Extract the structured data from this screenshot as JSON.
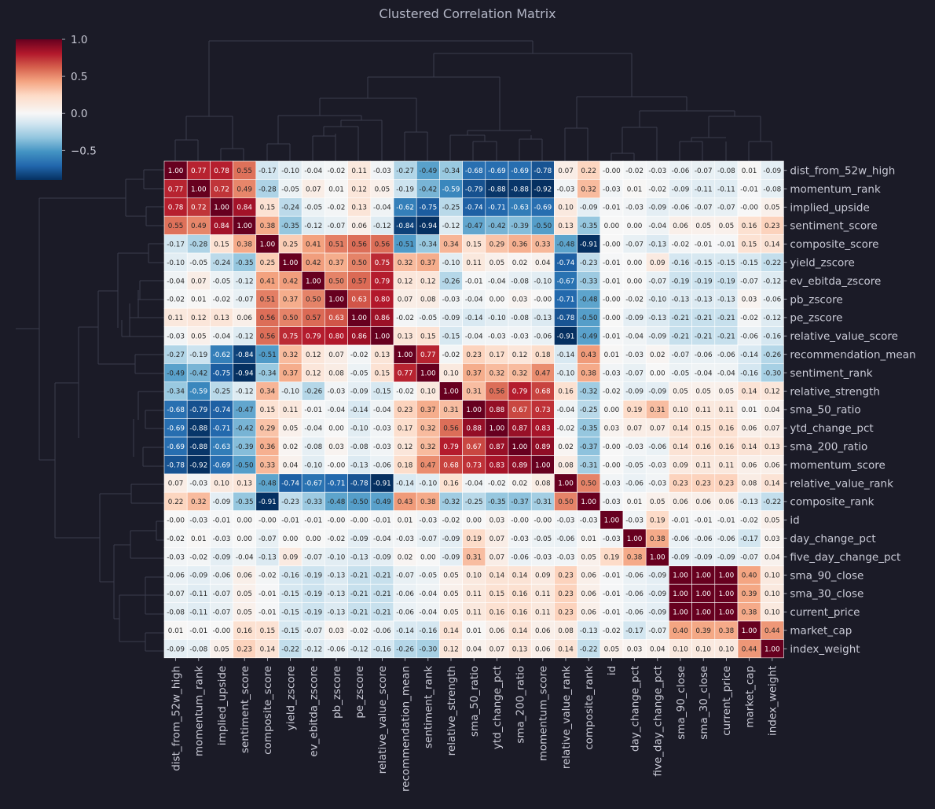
{
  "chart_data": {
    "type": "heatmap",
    "title": "Clustered Correlation Matrix",
    "labels": [
      "dist_from_52w_high",
      "momentum_rank",
      "implied_upside",
      "sentiment_score",
      "composite_score",
      "yield_zscore",
      "ev_ebitda_zscore",
      "pb_zscore",
      "pe_zscore",
      "relative_value_score",
      "recommendation_mean",
      "sentiment_rank",
      "relative_strength",
      "sma_50_ratio",
      "ytd_change_pct",
      "sma_200_ratio",
      "momentum_score",
      "relative_value_rank",
      "composite_rank",
      "id",
      "day_change_pct",
      "five_day_change_pct",
      "sma_90_close",
      "sma_30_close",
      "current_price",
      "market_cap",
      "index_weight"
    ],
    "value_labels": [
      [
        "1.00",
        "0.77",
        "0.78",
        "0.55",
        "-0.17",
        "-0.10",
        "-0.04",
        "-0.02",
        "0.11",
        "-0.03",
        "-0.27",
        "-0.49",
        "-0.34",
        "-0.68",
        "-0.69",
        "-0.69",
        "-0.78",
        "0.07",
        "0.22",
        "-0.00",
        "-0.02",
        "-0.03",
        "-0.06",
        "-0.07",
        "-0.08",
        "0.01",
        "-0.09"
      ],
      [
        "0.77",
        "1.00",
        "0.72",
        "0.49",
        "-0.28",
        "-0.05",
        "0.07",
        "0.01",
        "0.12",
        "0.05",
        "-0.19",
        "-0.42",
        "-0.59",
        "-0.79",
        "-0.88",
        "-0.88",
        "-0.92",
        "-0.03",
        "0.32",
        "-0.03",
        "0.01",
        "-0.02",
        "-0.09",
        "-0.11",
        "-0.11",
        "-0.01",
        "-0.08"
      ],
      [
        "0.78",
        "0.72",
        "1.00",
        "0.84",
        "0.15",
        "-0.24",
        "-0.05",
        "-0.02",
        "0.13",
        "-0.04",
        "-0.62",
        "-0.75",
        "-0.25",
        "-0.74",
        "-0.71",
        "-0.63",
        "-0.69",
        "0.10",
        "-0.09",
        "-0.01",
        "-0.03",
        "-0.09",
        "-0.06",
        "-0.07",
        "-0.07",
        "-0.00",
        "0.05"
      ],
      [
        "0.55",
        "0.49",
        "0.84",
        "1.00",
        "0.38",
        "-0.35",
        "-0.12",
        "-0.07",
        "0.06",
        "-0.12",
        "-0.84",
        "-0.94",
        "-0.12",
        "-0.47",
        "-0.42",
        "-0.39",
        "-0.50",
        "0.13",
        "-0.35",
        "0.00",
        "0.00",
        "-0.04",
        "0.06",
        "0.05",
        "0.05",
        "0.16",
        "0.23"
      ],
      [
        "-0.17",
        "-0.28",
        "0.15",
        "0.38",
        "1.00",
        "0.25",
        "0.41",
        "0.51",
        "0.56",
        "0.56",
        "-0.51",
        "-0.34",
        "0.34",
        "0.15",
        "0.29",
        "0.36",
        "0.33",
        "-0.48",
        "-0.91",
        "-0.00",
        "-0.07",
        "-0.13",
        "-0.02",
        "-0.01",
        "-0.01",
        "0.15",
        "0.14"
      ],
      [
        "-0.10",
        "-0.05",
        "-0.24",
        "-0.35",
        "0.25",
        "1.00",
        "0.42",
        "0.37",
        "0.50",
        "0.75",
        "0.32",
        "0.37",
        "-0.10",
        "0.11",
        "0.05",
        "0.02",
        "0.04",
        "-0.74",
        "-0.23",
        "-0.01",
        "0.00",
        "0.09",
        "-0.16",
        "-0.15",
        "-0.15",
        "-0.15",
        "-0.22"
      ],
      [
        "-0.04",
        "0.07",
        "-0.05",
        "-0.12",
        "0.41",
        "0.42",
        "1.00",
        "0.50",
        "0.57",
        "0.79",
        "0.12",
        "0.12",
        "-0.26",
        "-0.01",
        "-0.04",
        "-0.08",
        "-0.10",
        "-0.67",
        "-0.33",
        "-0.01",
        "0.00",
        "-0.07",
        "-0.19",
        "-0.19",
        "-0.19",
        "-0.07",
        "-0.12"
      ],
      [
        "-0.02",
        "0.01",
        "-0.02",
        "-0.07",
        "0.51",
        "0.37",
        "0.50",
        "1.00",
        "0.63",
        "0.80",
        "0.07",
        "0.08",
        "-0.03",
        "-0.04",
        "0.00",
        "0.03",
        "-0.00",
        "-0.71",
        "-0.48",
        "-0.00",
        "-0.02",
        "-0.10",
        "-0.13",
        "-0.13",
        "-0.13",
        "0.03",
        "-0.06"
      ],
      [
        "0.11",
        "0.12",
        "0.13",
        "0.06",
        "0.56",
        "0.50",
        "0.57",
        "0.63",
        "1.00",
        "0.86",
        "-0.02",
        "-0.05",
        "-0.09",
        "-0.14",
        "-0.10",
        "-0.08",
        "-0.13",
        "-0.78",
        "-0.50",
        "-0.00",
        "-0.09",
        "-0.13",
        "-0.21",
        "-0.21",
        "-0.21",
        "-0.02",
        "-0.12"
      ],
      [
        "-0.03",
        "0.05",
        "-0.04",
        "-0.12",
        "0.56",
        "0.75",
        "0.79",
        "0.80",
        "0.86",
        "1.00",
        "0.13",
        "0.15",
        "-0.15",
        "-0.04",
        "-0.03",
        "-0.03",
        "-0.06",
        "-0.91",
        "-0.49",
        "-0.01",
        "-0.04",
        "-0.09",
        "-0.21",
        "-0.21",
        "-0.21",
        "-0.06",
        "-0.16"
      ],
      [
        "-0.27",
        "-0.19",
        "-0.62",
        "-0.84",
        "-0.51",
        "0.32",
        "0.12",
        "0.07",
        "-0.02",
        "0.13",
        "1.00",
        "0.77",
        "-0.02",
        "0.23",
        "0.17",
        "0.12",
        "0.18",
        "-0.14",
        "0.43",
        "0.01",
        "-0.03",
        "0.02",
        "-0.07",
        "-0.06",
        "-0.06",
        "-0.14",
        "-0.26"
      ],
      [
        "-0.49",
        "-0.42",
        "-0.75",
        "-0.94",
        "-0.34",
        "0.37",
        "0.12",
        "0.08",
        "-0.05",
        "0.15",
        "0.77",
        "1.00",
        "0.10",
        "0.37",
        "0.32",
        "0.32",
        "0.47",
        "-0.10",
        "0.38",
        "-0.03",
        "-0.07",
        "0.00",
        "-0.05",
        "-0.04",
        "-0.04",
        "-0.16",
        "-0.30"
      ],
      [
        "-0.34",
        "-0.59",
        "-0.25",
        "-0.12",
        "0.34",
        "-0.10",
        "-0.26",
        "-0.03",
        "-0.09",
        "-0.15",
        "-0.02",
        "0.10",
        "1.00",
        "0.31",
        "0.56",
        "0.79",
        "0.68",
        "0.16",
        "-0.32",
        "-0.02",
        "-0.09",
        "-0.09",
        "0.05",
        "0.05",
        "0.05",
        "0.14",
        "0.12"
      ],
      [
        "-0.68",
        "-0.79",
        "-0.74",
        "-0.47",
        "0.15",
        "0.11",
        "-0.01",
        "-0.04",
        "-0.14",
        "-0.04",
        "0.23",
        "0.37",
        "0.31",
        "1.00",
        "0.88",
        "0.67",
        "0.73",
        "-0.04",
        "-0.25",
        "0.00",
        "0.19",
        "0.31",
        "0.10",
        "0.11",
        "0.11",
        "0.01",
        "0.04"
      ],
      [
        "-0.69",
        "-0.88",
        "-0.71",
        "-0.42",
        "0.29",
        "0.05",
        "-0.04",
        "0.00",
        "-0.10",
        "-0.03",
        "0.17",
        "0.32",
        "0.56",
        "0.88",
        "1.00",
        "0.87",
        "0.83",
        "-0.02",
        "-0.35",
        "0.03",
        "0.07",
        "0.07",
        "0.14",
        "0.15",
        "0.16",
        "0.06",
        "0.07"
      ],
      [
        "-0.69",
        "-0.88",
        "-0.63",
        "-0.39",
        "0.36",
        "0.02",
        "-0.08",
        "0.03",
        "-0.08",
        "-0.03",
        "0.12",
        "0.32",
        "0.79",
        "0.67",
        "0.87",
        "1.00",
        "0.89",
        "0.02",
        "-0.37",
        "-0.00",
        "-0.03",
        "-0.06",
        "0.14",
        "0.16",
        "0.16",
        "0.14",
        "0.13"
      ],
      [
        "-0.78",
        "-0.92",
        "-0.69",
        "-0.50",
        "0.33",
        "0.04",
        "-0.10",
        "-0.00",
        "-0.13",
        "-0.06",
        "0.18",
        "0.47",
        "0.68",
        "0.73",
        "0.83",
        "0.89",
        "1.00",
        "0.08",
        "-0.31",
        "-0.00",
        "-0.05",
        "-0.03",
        "0.09",
        "0.11",
        "0.11",
        "0.06",
        "0.06"
      ],
      [
        "0.07",
        "-0.03",
        "0.10",
        "0.13",
        "-0.48",
        "-0.74",
        "-0.67",
        "-0.71",
        "-0.78",
        "-0.91",
        "-0.14",
        "-0.10",
        "0.16",
        "-0.04",
        "-0.02",
        "0.02",
        "0.08",
        "1.00",
        "0.50",
        "-0.03",
        "-0.06",
        "-0.03",
        "0.23",
        "0.23",
        "0.23",
        "0.08",
        "0.14"
      ],
      [
        "0.22",
        "0.32",
        "-0.09",
        "-0.35",
        "-0.91",
        "-0.23",
        "-0.33",
        "-0.48",
        "-0.50",
        "-0.49",
        "0.43",
        "0.38",
        "-0.32",
        "-0.25",
        "-0.35",
        "-0.37",
        "-0.31",
        "0.50",
        "1.00",
        "-0.03",
        "0.01",
        "0.05",
        "0.06",
        "0.06",
        "0.06",
        "-0.13",
        "-0.22"
      ],
      [
        "-0.00",
        "-0.03",
        "-0.01",
        "0.00",
        "-0.00",
        "-0.01",
        "-0.01",
        "-0.00",
        "-0.00",
        "-0.01",
        "0.01",
        "-0.03",
        "-0.02",
        "0.00",
        "0.03",
        "-0.00",
        "-0.00",
        "-0.03",
        "-0.03",
        "1.00",
        "-0.03",
        "0.19",
        "-0.01",
        "-0.01",
        "-0.01",
        "-0.02",
        "0.05"
      ],
      [
        "-0.02",
        "0.01",
        "-0.03",
        "0.00",
        "-0.07",
        "0.00",
        "0.00",
        "-0.02",
        "-0.09",
        "-0.04",
        "-0.03",
        "-0.07",
        "-0.09",
        "0.19",
        "0.07",
        "-0.03",
        "-0.05",
        "-0.06",
        "0.01",
        "-0.03",
        "1.00",
        "0.38",
        "-0.06",
        "-0.06",
        "-0.06",
        "-0.17",
        "0.03"
      ],
      [
        "-0.03",
        "-0.02",
        "-0.09",
        "-0.04",
        "-0.13",
        "0.09",
        "-0.07",
        "-0.10",
        "-0.13",
        "-0.09",
        "0.02",
        "0.00",
        "-0.09",
        "0.31",
        "0.07",
        "-0.06",
        "-0.03",
        "-0.03",
        "0.05",
        "0.19",
        "0.38",
        "1.00",
        "-0.09",
        "-0.09",
        "-0.09",
        "-0.07",
        "0.04"
      ],
      [
        "-0.06",
        "-0.09",
        "-0.06",
        "0.06",
        "-0.02",
        "-0.16",
        "-0.19",
        "-0.13",
        "-0.21",
        "-0.21",
        "-0.07",
        "-0.05",
        "0.05",
        "0.10",
        "0.14",
        "0.14",
        "0.09",
        "0.23",
        "0.06",
        "-0.01",
        "-0.06",
        "-0.09",
        "1.00",
        "1.00",
        "1.00",
        "0.40",
        "0.10"
      ],
      [
        "-0.07",
        "-0.11",
        "-0.07",
        "0.05",
        "-0.01",
        "-0.15",
        "-0.19",
        "-0.13",
        "-0.21",
        "-0.21",
        "-0.06",
        "-0.04",
        "0.05",
        "0.11",
        "0.15",
        "0.16",
        "0.11",
        "0.23",
        "0.06",
        "-0.01",
        "-0.06",
        "-0.09",
        "1.00",
        "1.00",
        "1.00",
        "0.39",
        "0.10"
      ],
      [
        "-0.08",
        "-0.11",
        "-0.07",
        "0.05",
        "-0.01",
        "-0.15",
        "-0.19",
        "-0.13",
        "-0.21",
        "-0.21",
        "-0.06",
        "-0.04",
        "0.05",
        "0.11",
        "0.16",
        "0.16",
        "0.11",
        "0.23",
        "0.06",
        "-0.01",
        "-0.06",
        "-0.09",
        "1.00",
        "1.00",
        "1.00",
        "0.38",
        "0.10"
      ],
      [
        "0.01",
        "-0.01",
        "-0.00",
        "0.16",
        "0.15",
        "-0.15",
        "-0.07",
        "0.03",
        "-0.02",
        "-0.06",
        "-0.14",
        "-0.16",
        "0.14",
        "0.01",
        "0.06",
        "0.14",
        "0.06",
        "0.08",
        "-0.13",
        "-0.02",
        "-0.17",
        "-0.07",
        "0.40",
        "0.39",
        "0.38",
        "1.00",
        "0.44"
      ],
      [
        "-0.09",
        "-0.08",
        "0.05",
        "0.23",
        "0.14",
        "-0.22",
        "-0.12",
        "-0.06",
        "-0.12",
        "-0.16",
        "-0.26",
        "-0.30",
        "0.12",
        "0.04",
        "0.07",
        "0.13",
        "0.06",
        "0.14",
        "-0.22",
        "0.05",
        "0.03",
        "0.04",
        "0.10",
        "0.10",
        "0.10",
        "0.44",
        "1.00"
      ]
    ],
    "colorbar": {
      "min": -0.9,
      "max": 1.0,
      "ticks": [
        "1.0",
        "0.5",
        "0.0",
        "−0.5"
      ],
      "colormap": "RdBu_r"
    },
    "colors": {
      "background": "#1b1b27",
      "text": "#c9cad6",
      "title": "#b3b6c6",
      "dendrogram": "#3b3d4d",
      "grid": "#ffffff"
    }
  }
}
